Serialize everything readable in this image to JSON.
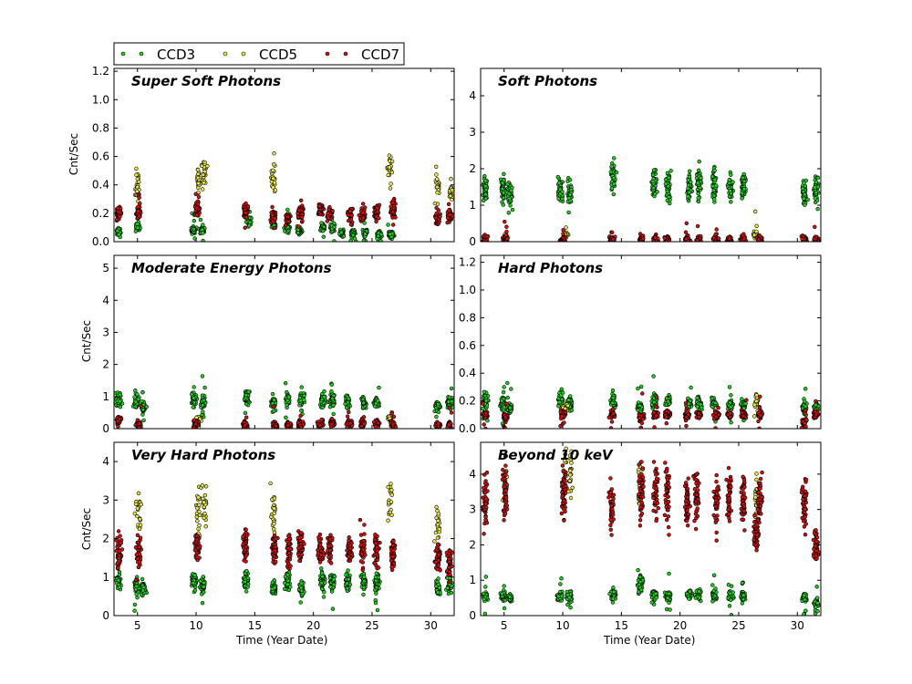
{
  "legend": {
    "entries": [
      {
        "label": "CCD3",
        "color": "#22cc22"
      },
      {
        "label": "CCD5",
        "color": "#e6e64a"
      },
      {
        "label": "CCD7",
        "color": "#cc1111"
      }
    ],
    "placement": "above top-left panel"
  },
  "colors": {
    "CCD3": "#22cc22",
    "CCD5": "#e6e64a",
    "CCD7": "#cc1111",
    "edge": "#000000"
  },
  "chart_data": [
    {
      "type": "scatter",
      "title": "Super Soft Photons",
      "ylabel": "Cnt/Sec",
      "xlabel": "",
      "xlim": [
        3,
        32
      ],
      "ylim": [
        0,
        1.22
      ],
      "xticks": [
        5,
        10,
        15,
        20,
        25,
        30
      ],
      "yticks": [
        0.0,
        0.2,
        0.4,
        0.6,
        0.8,
        1.0,
        1.2
      ],
      "ytick_labels": [
        "0.0",
        "0.2",
        "0.4",
        "0.6",
        "0.8",
        "1.0",
        "1.2"
      ],
      "series": [
        {
          "name": "CCD3",
          "clusters": [
            [
              3.4,
              0.07
            ],
            [
              5.0,
              0.1
            ],
            [
              9.8,
              0.08
            ],
            [
              10.5,
              0.08
            ],
            [
              14.5,
              0.15
            ],
            [
              16.6,
              0.12
            ],
            [
              17.8,
              0.1
            ],
            [
              18.8,
              0.08
            ],
            [
              20.8,
              0.1
            ],
            [
              21.6,
              0.1
            ],
            [
              22.4,
              0.06
            ],
            [
              23.4,
              0.06
            ],
            [
              24.4,
              0.06
            ],
            [
              25.6,
              0.05
            ],
            [
              26.6,
              0.05
            ]
          ]
        },
        {
          "name": "CCD5",
          "clusters": [
            [
              5.0,
              0.4
            ],
            [
              10.2,
              0.45
            ],
            [
              10.7,
              0.5
            ],
            [
              16.6,
              0.45
            ],
            [
              26.5,
              0.5
            ],
            [
              30.6,
              0.4
            ],
            [
              31.7,
              0.35
            ]
          ]
        },
        {
          "name": "CCD7",
          "clusters": [
            [
              3.4,
              0.2
            ],
            [
              5.1,
              0.21
            ],
            [
              10.1,
              0.23
            ],
            [
              14.2,
              0.22
            ],
            [
              16.6,
              0.18
            ],
            [
              17.8,
              0.16
            ],
            [
              18.9,
              0.2
            ],
            [
              20.6,
              0.22
            ],
            [
              21.4,
              0.2
            ],
            [
              23.1,
              0.2
            ],
            [
              24.2,
              0.19
            ],
            [
              25.4,
              0.22
            ],
            [
              26.8,
              0.22
            ],
            [
              30.6,
              0.15
            ],
            [
              31.6,
              0.18
            ]
          ]
        }
      ]
    },
    {
      "type": "scatter",
      "title": "Soft Photons",
      "ylabel": "",
      "xlabel": "",
      "xlim": [
        3,
        32
      ],
      "ylim": [
        0,
        4.75
      ],
      "xticks": [
        5,
        10,
        15,
        20,
        25,
        30
      ],
      "yticks": [
        0,
        1,
        2,
        3,
        4
      ],
      "ytick_labels": [
        "0",
        "1",
        "2",
        "3",
        "4"
      ],
      "series": [
        {
          "name": "CCD3",
          "clusters": [
            [
              3.4,
              1.5
            ],
            [
              4.9,
              1.5
            ],
            [
              5.5,
              1.3
            ],
            [
              9.8,
              1.4
            ],
            [
              10.6,
              1.3
            ],
            [
              14.3,
              1.8
            ],
            [
              17.8,
              1.6
            ],
            [
              19.0,
              1.5
            ],
            [
              20.8,
              1.5
            ],
            [
              21.6,
              1.6
            ],
            [
              22.9,
              1.6
            ],
            [
              24.3,
              1.5
            ],
            [
              25.4,
              1.5
            ],
            [
              30.6,
              1.3
            ],
            [
              31.6,
              1.4
            ]
          ]
        },
        {
          "name": "CCD5",
          "clusters": [
            [
              5.1,
              0.1
            ],
            [
              10.3,
              0.2
            ],
            [
              26.4,
              0.2
            ]
          ]
        },
        {
          "name": "CCD7",
          "clusters": [
            [
              3.4,
              0.05
            ],
            [
              5.1,
              0.05
            ],
            [
              10.0,
              0.05
            ],
            [
              14.2,
              0.05
            ],
            [
              16.7,
              0.05
            ],
            [
              17.9,
              0.05
            ],
            [
              18.9,
              0.05
            ],
            [
              20.6,
              0.05
            ],
            [
              21.6,
              0.05
            ],
            [
              23.1,
              0.05
            ],
            [
              24.2,
              0.05
            ],
            [
              25.4,
              0.05
            ],
            [
              26.8,
              0.05
            ],
            [
              30.6,
              0.05
            ],
            [
              31.6,
              0.05
            ]
          ]
        }
      ]
    },
    {
      "type": "scatter",
      "title": "Moderate Energy Photons",
      "ylabel": "Cnt/Sec",
      "xlabel": "",
      "xlim": [
        3,
        32
      ],
      "ylim": [
        0,
        5.4
      ],
      "xticks": [
        5,
        10,
        15,
        20,
        25,
        30
      ],
      "yticks": [
        0,
        1,
        2,
        3,
        4,
        5
      ],
      "ytick_labels": [
        "0",
        "1",
        "2",
        "3",
        "4",
        "5"
      ],
      "series": [
        {
          "name": "CCD3",
          "clusters": [
            [
              3.4,
              0.9
            ],
            [
              4.9,
              0.8
            ],
            [
              5.5,
              0.7
            ],
            [
              9.8,
              0.9
            ],
            [
              10.6,
              0.8
            ],
            [
              14.3,
              1.0
            ],
            [
              16.6,
              0.8
            ],
            [
              17.8,
              0.9
            ],
            [
              19.0,
              0.9
            ],
            [
              20.8,
              0.9
            ],
            [
              21.6,
              0.9
            ],
            [
              22.9,
              0.8
            ],
            [
              24.3,
              0.8
            ],
            [
              25.4,
              0.8
            ],
            [
              30.6,
              0.7
            ],
            [
              31.6,
              0.8
            ]
          ]
        },
        {
          "name": "CCD5",
          "clusters": [
            [
              10.2,
              0.3
            ],
            [
              26.5,
              0.35
            ]
          ]
        },
        {
          "name": "CCD7",
          "clusters": [
            [
              3.4,
              0.25
            ],
            [
              5.1,
              0.12
            ],
            [
              10.0,
              0.15
            ],
            [
              14.2,
              0.1
            ],
            [
              16.7,
              0.1
            ],
            [
              17.9,
              0.12
            ],
            [
              18.9,
              0.15
            ],
            [
              20.6,
              0.15
            ],
            [
              21.6,
              0.15
            ],
            [
              23.1,
              0.15
            ],
            [
              24.2,
              0.15
            ],
            [
              25.4,
              0.15
            ],
            [
              26.8,
              0.12
            ],
            [
              30.6,
              0.1
            ],
            [
              31.6,
              0.1
            ]
          ]
        }
      ]
    },
    {
      "type": "scatter",
      "title": "Hard Photons",
      "ylabel": "",
      "xlabel": "",
      "xlim": [
        3,
        32
      ],
      "ylim": [
        0,
        1.25
      ],
      "xticks": [
        5,
        10,
        15,
        20,
        25,
        30
      ],
      "yticks": [
        0.0,
        0.2,
        0.4,
        0.6,
        0.8,
        1.0,
        1.2
      ],
      "ytick_labels": [
        "0.0",
        "0.2",
        "0.4",
        "0.6",
        "0.8",
        "1.0",
        "1.2"
      ],
      "series": [
        {
          "name": "CCD3",
          "clusters": [
            [
              3.4,
              0.2
            ],
            [
              4.9,
              0.18
            ],
            [
              5.5,
              0.15
            ],
            [
              9.8,
              0.2
            ],
            [
              10.6,
              0.18
            ],
            [
              14.3,
              0.2
            ],
            [
              16.6,
              0.15
            ],
            [
              17.8,
              0.2
            ],
            [
              19.0,
              0.2
            ],
            [
              20.8,
              0.18
            ],
            [
              21.6,
              0.18
            ],
            [
              22.9,
              0.18
            ],
            [
              24.3,
              0.17
            ],
            [
              25.4,
              0.17
            ],
            [
              30.6,
              0.15
            ],
            [
              31.6,
              0.15
            ]
          ]
        },
        {
          "name": "CCD5",
          "clusters": [
            [
              10.2,
              0.15
            ],
            [
              26.5,
              0.2
            ]
          ]
        },
        {
          "name": "CCD7",
          "clusters": [
            [
              3.4,
              0.1
            ],
            [
              5.1,
              0.08
            ],
            [
              10.0,
              0.1
            ],
            [
              14.2,
              0.1
            ],
            [
              16.7,
              0.08
            ],
            [
              17.9,
              0.1
            ],
            [
              18.9,
              0.1
            ],
            [
              20.6,
              0.1
            ],
            [
              21.6,
              0.1
            ],
            [
              23.1,
              0.1
            ],
            [
              24.2,
              0.1
            ],
            [
              25.4,
              0.1
            ],
            [
              26.8,
              0.1
            ],
            [
              30.6,
              0.05
            ],
            [
              31.6,
              0.1
            ]
          ]
        }
      ]
    },
    {
      "type": "scatter",
      "title": "Very Hard Photons",
      "ylabel": "Cnt/Sec",
      "xlabel": "Time (Year Date)",
      "xlim": [
        3,
        32
      ],
      "ylim": [
        0,
        4.5
      ],
      "xticks": [
        5,
        10,
        15,
        20,
        25,
        30
      ],
      "yticks": [
        0,
        1,
        2,
        3,
        4
      ],
      "ytick_labels": [
        "0",
        "1",
        "2",
        "3",
        "4"
      ],
      "series": [
        {
          "name": "CCD3",
          "clusters": [
            [
              3.4,
              0.9
            ],
            [
              4.9,
              0.8
            ],
            [
              5.5,
              0.7
            ],
            [
              9.8,
              0.9
            ],
            [
              10.6,
              0.8
            ],
            [
              14.3,
              0.9
            ],
            [
              16.6,
              0.7
            ],
            [
              17.8,
              0.9
            ],
            [
              19.0,
              0.7
            ],
            [
              20.8,
              0.9
            ],
            [
              21.6,
              0.9
            ],
            [
              22.9,
              0.9
            ],
            [
              24.3,
              0.85
            ],
            [
              25.4,
              0.85
            ],
            [
              30.6,
              0.7
            ],
            [
              31.6,
              0.8
            ]
          ]
        },
        {
          "name": "CCD5",
          "clusters": [
            [
              5.1,
              2.7
            ],
            [
              10.2,
              2.8
            ],
            [
              10.7,
              2.9
            ],
            [
              16.6,
              2.7
            ],
            [
              26.5,
              3.0
            ],
            [
              30.6,
              2.3
            ]
          ]
        },
        {
          "name": "CCD7",
          "clusters": [
            [
              3.4,
              1.6
            ],
            [
              5.1,
              1.65
            ],
            [
              10.1,
              1.8
            ],
            [
              14.2,
              1.9
            ],
            [
              16.7,
              1.7
            ],
            [
              17.9,
              1.7
            ],
            [
              18.9,
              1.75
            ],
            [
              20.6,
              1.7
            ],
            [
              21.4,
              1.75
            ],
            [
              23.1,
              1.7
            ],
            [
              24.2,
              1.7
            ],
            [
              25.4,
              1.7
            ],
            [
              26.8,
              1.6
            ],
            [
              30.6,
              1.5
            ],
            [
              31.6,
              1.4
            ]
          ]
        }
      ]
    },
    {
      "type": "scatter",
      "title": "Beyond 10 keV",
      "ylabel": "",
      "xlabel": "Time (Year Date)",
      "xlim": [
        3,
        32
      ],
      "ylim": [
        0,
        4.9
      ],
      "xticks": [
        5,
        10,
        15,
        20,
        25,
        30
      ],
      "yticks": [
        0,
        1,
        2,
        3,
        4
      ],
      "ytick_labels": [
        "0",
        "1",
        "2",
        "3",
        "4"
      ],
      "series": [
        {
          "name": "CCD3",
          "clusters": [
            [
              3.4,
              0.55
            ],
            [
              4.9,
              0.55
            ],
            [
              5.5,
              0.5
            ],
            [
              9.8,
              0.55
            ],
            [
              10.6,
              0.55
            ],
            [
              14.3,
              0.6
            ],
            [
              16.6,
              0.9
            ],
            [
              17.8,
              0.6
            ],
            [
              19.0,
              0.55
            ],
            [
              20.8,
              0.6
            ],
            [
              21.6,
              0.6
            ],
            [
              22.9,
              0.55
            ],
            [
              24.3,
              0.55
            ],
            [
              25.4,
              0.55
            ],
            [
              30.6,
              0.5
            ],
            [
              31.6,
              0.35
            ]
          ]
        },
        {
          "name": "CCD5",
          "clusters": [
            [
              5.1,
              3.7
            ],
            [
              10.2,
              4.0
            ],
            [
              10.7,
              4.1
            ],
            [
              16.6,
              3.6
            ],
            [
              26.5,
              3.3
            ]
          ]
        },
        {
          "name": "CCD7",
          "clusters": [
            [
              3.4,
              3.2
            ],
            [
              5.1,
              3.35
            ],
            [
              10.1,
              3.55
            ],
            [
              14.2,
              3.1
            ],
            [
              16.7,
              3.5
            ],
            [
              17.9,
              3.4
            ],
            [
              18.9,
              3.45
            ],
            [
              20.6,
              3.3
            ],
            [
              21.4,
              3.3
            ],
            [
              23.1,
              3.25
            ],
            [
              24.2,
              3.3
            ],
            [
              25.4,
              3.25
            ],
            [
              26.8,
              3.2
            ],
            [
              26.5,
              2.3
            ],
            [
              30.6,
              3.2
            ],
            [
              31.6,
              2.0
            ]
          ]
        }
      ]
    }
  ]
}
